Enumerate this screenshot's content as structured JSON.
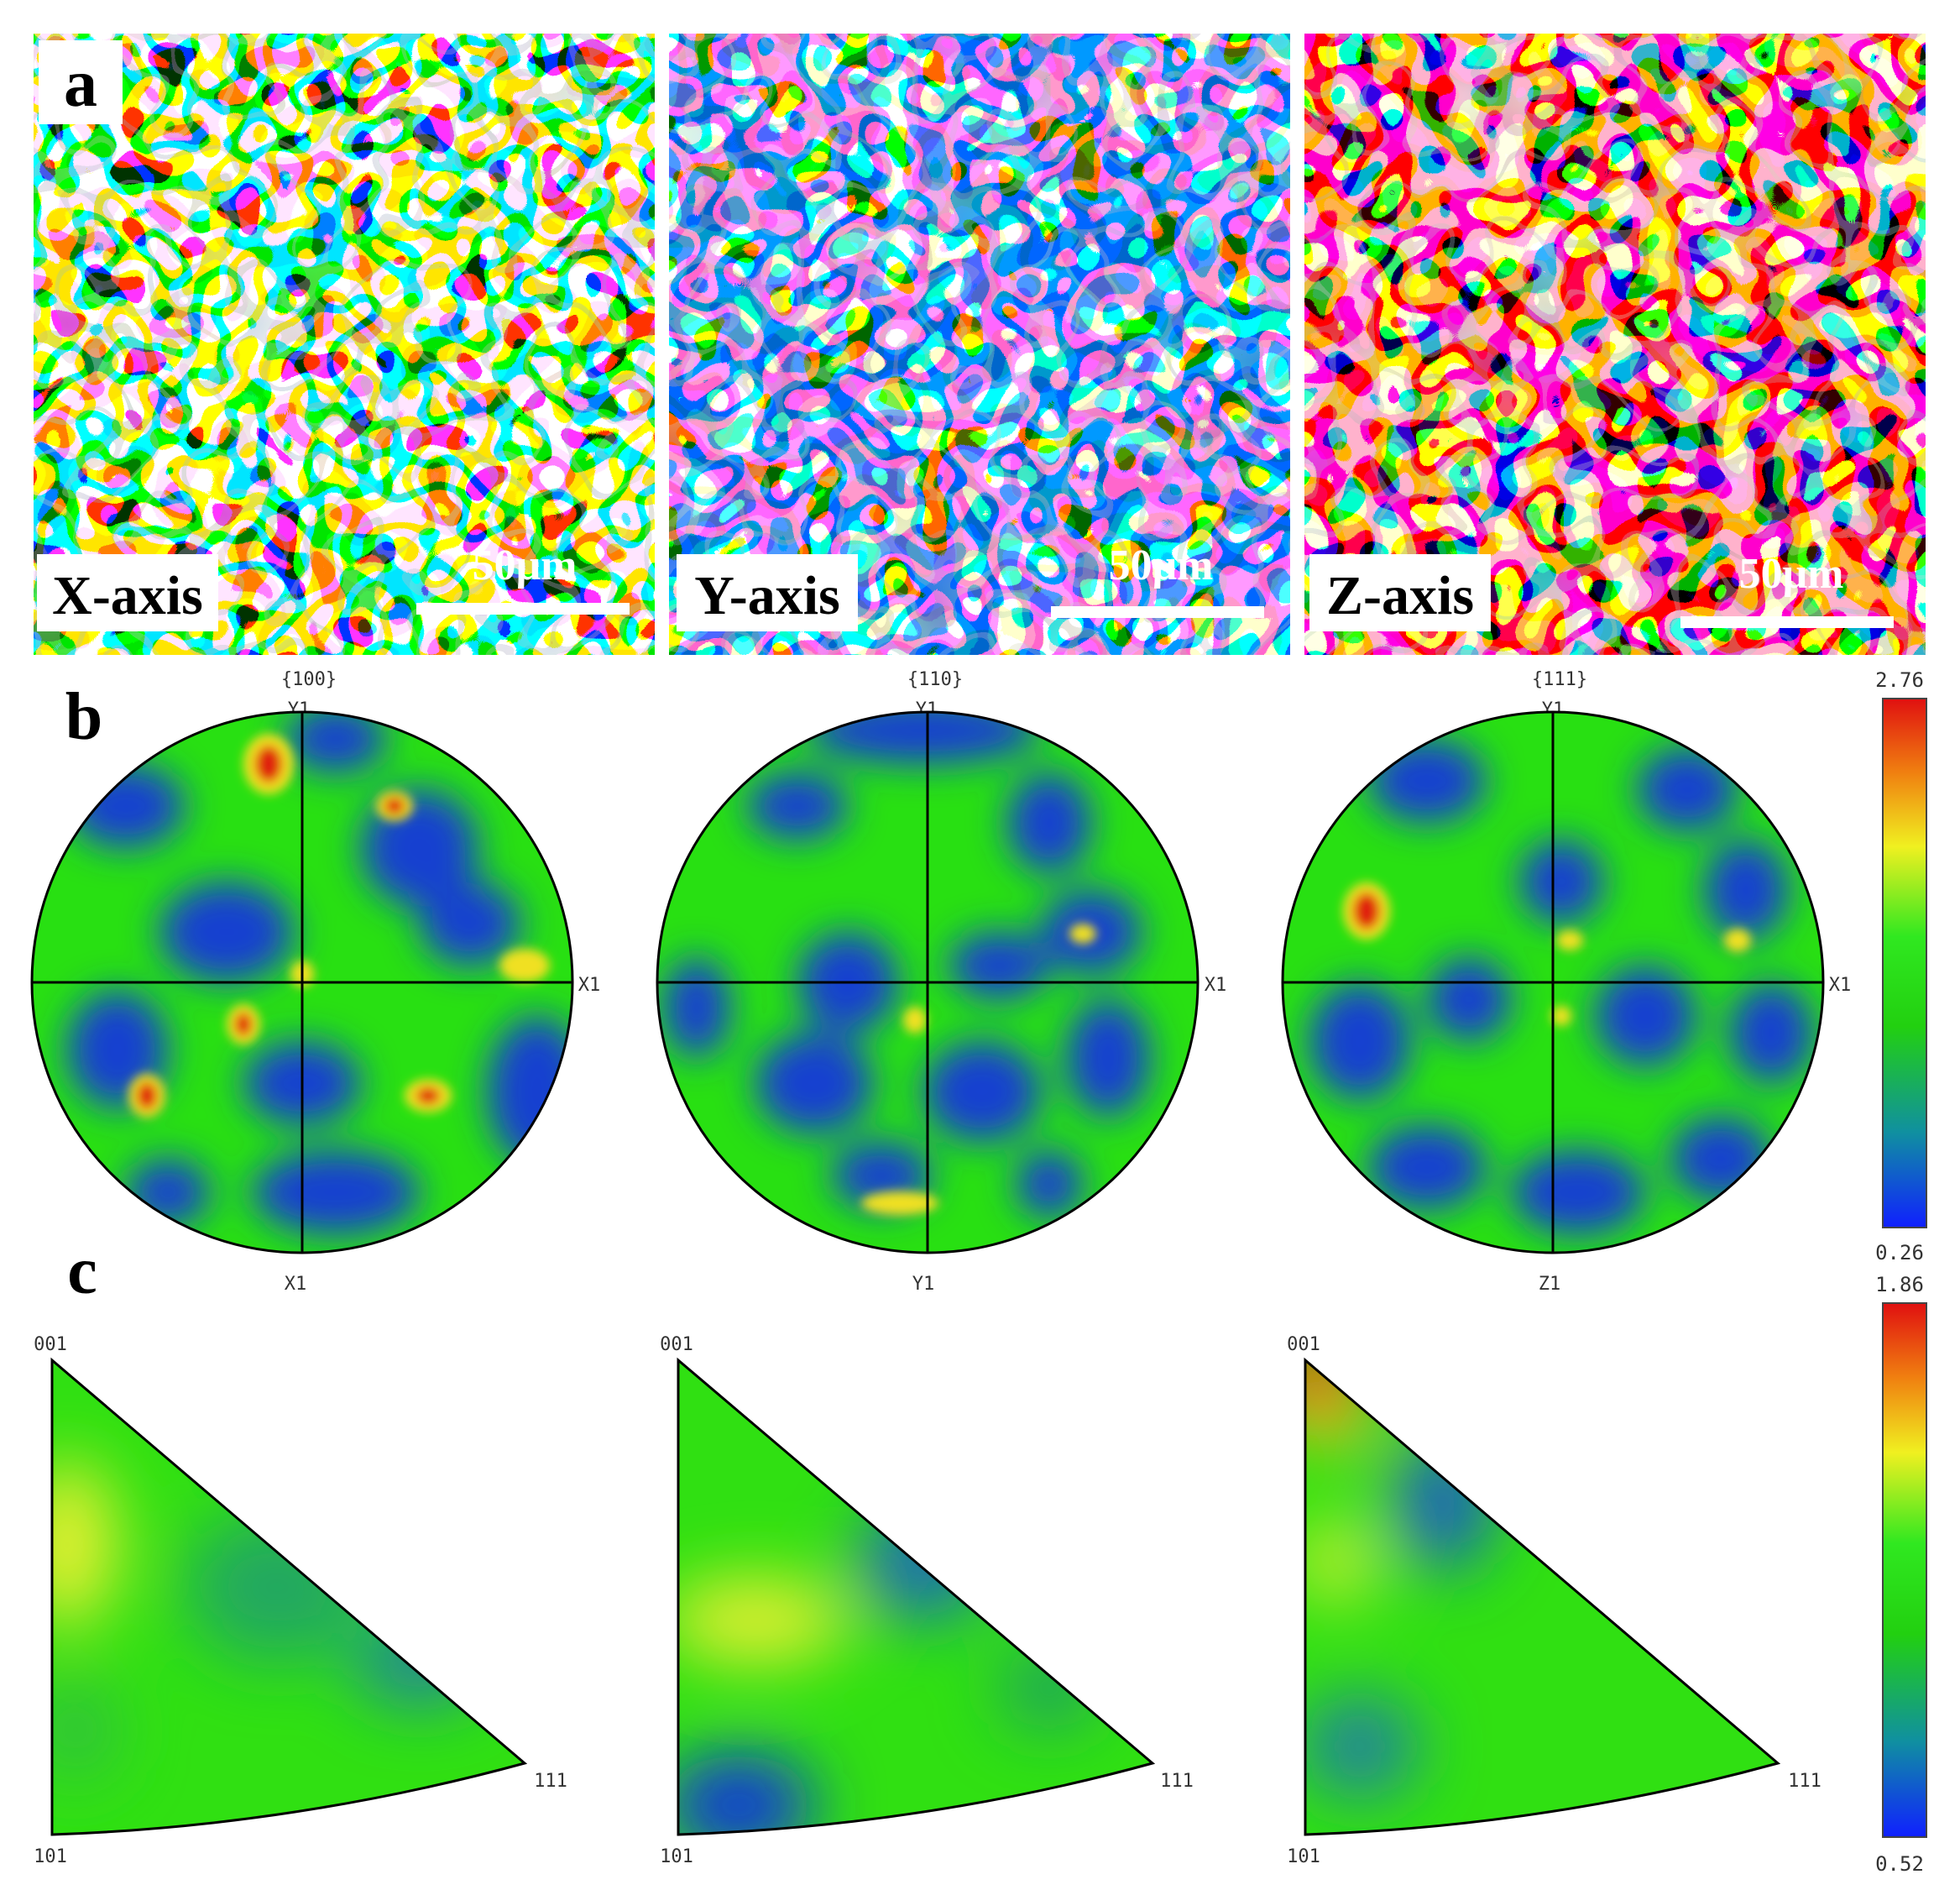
{
  "figure": {
    "panels": {
      "a": {
        "letter": "a",
        "maps": [
          {
            "axis_label": "X-axis",
            "scale_bar": "50μm"
          },
          {
            "axis_label": "Y-axis",
            "scale_bar": "50μm"
          },
          {
            "axis_label": "Z-axis",
            "scale_bar": "50μm"
          }
        ]
      },
      "b": {
        "letter": "b",
        "pole_figures": [
          {
            "plane": "{100}",
            "top": "Y1",
            "right": "X1",
            "bottom": "X1"
          },
          {
            "plane": "{110}",
            "top": "Y1",
            "right": "X1",
            "bottom": "Y1"
          },
          {
            "plane": "{111}",
            "top": "Y1",
            "right": "X1",
            "bottom": "Z1"
          }
        ],
        "colorbar": {
          "max": "2.76",
          "min": "0.26"
        }
      },
      "c": {
        "letter": "c",
        "ipf_triangles": [
          {
            "top_corner": "001",
            "bottom_corner": "101",
            "right_corner": "111"
          },
          {
            "top_corner": "001",
            "bottom_corner": "101",
            "right_corner": "111"
          },
          {
            "top_corner": "001",
            "bottom_corner": "101",
            "right_corner": "111"
          }
        ],
        "colorbar": {
          "max": "1.86",
          "min": "0.52"
        }
      }
    },
    "colors": {
      "low": "#1030e0",
      "mid": "#22e010",
      "high": "#e82010",
      "accent": "#f0e020"
    }
  }
}
